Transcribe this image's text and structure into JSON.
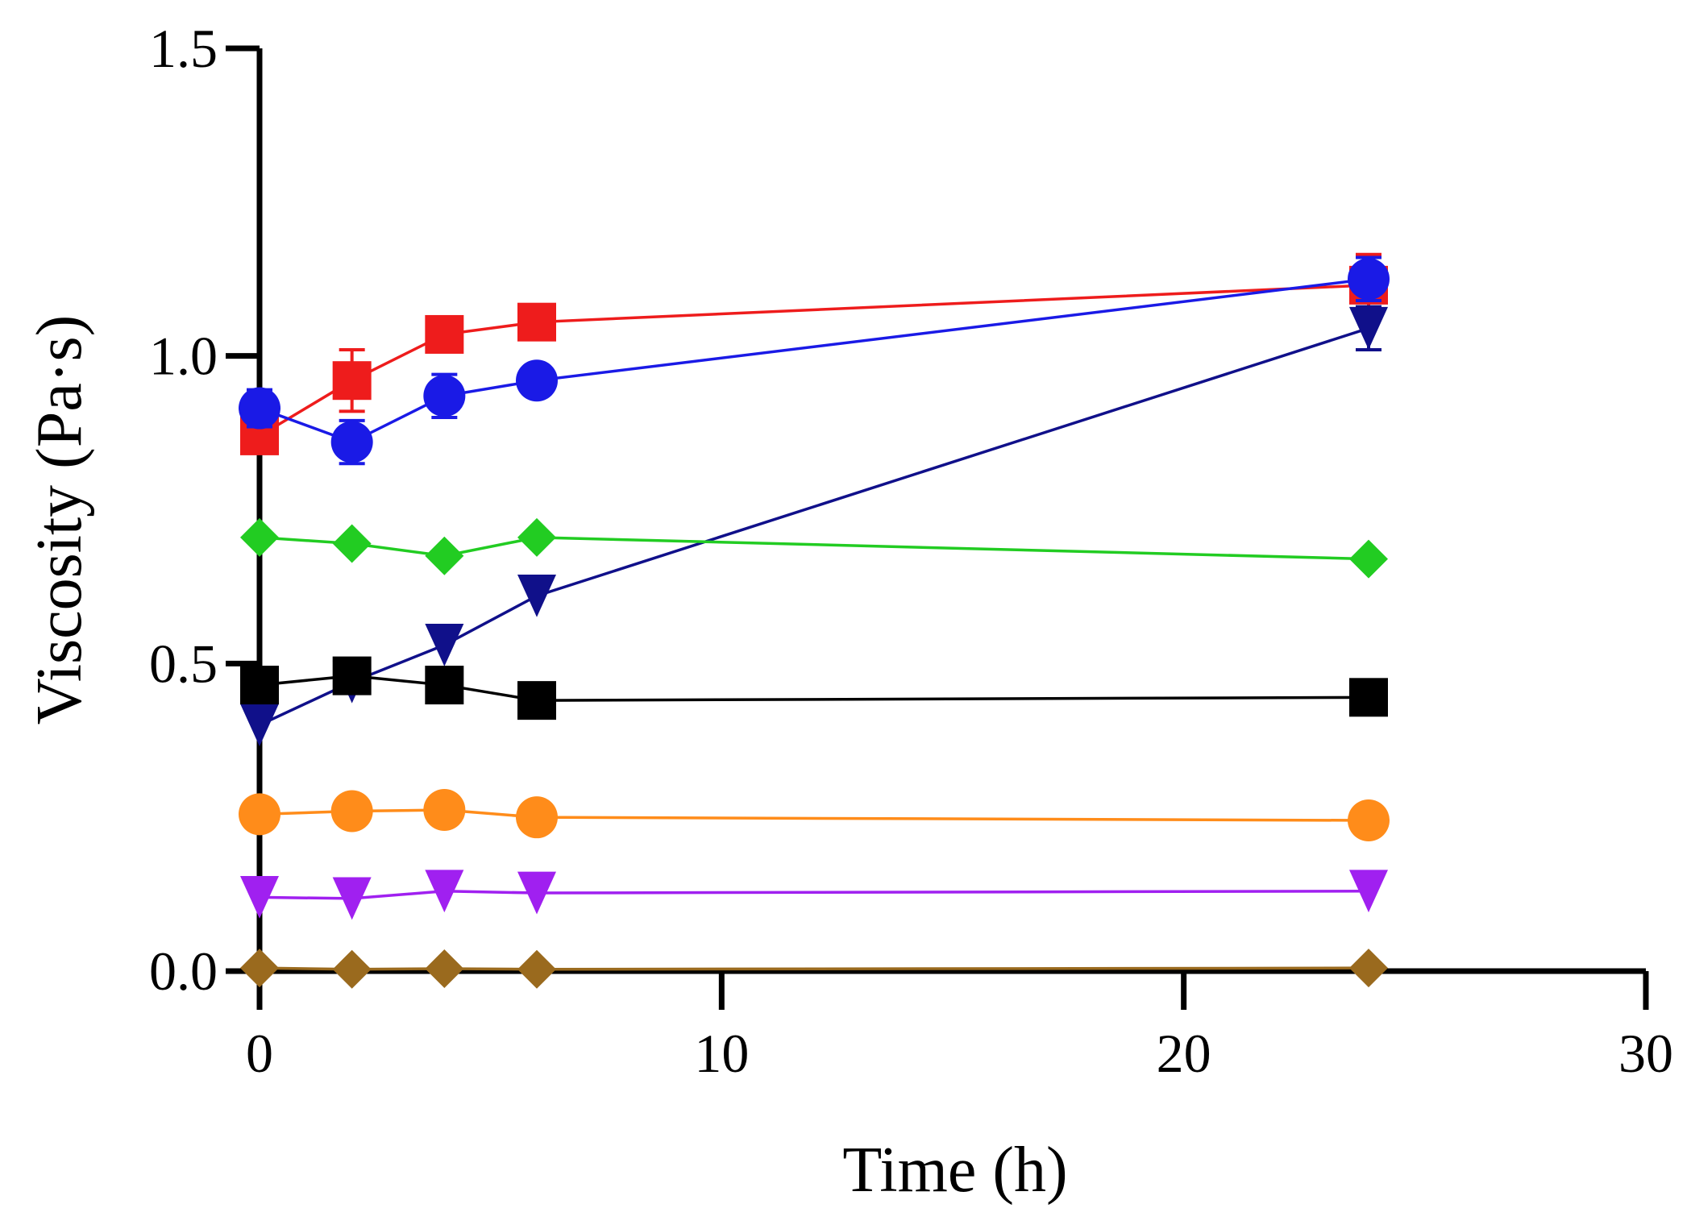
{
  "chart_data": {
    "type": "line",
    "title": "",
    "xlabel": "Time (h)",
    "ylabel": "Viscosity (Pa·s)",
    "xlim": [
      0,
      30
    ],
    "ylim": [
      0,
      1.5
    ],
    "x_ticks": [
      0,
      10,
      20,
      30
    ],
    "x_tick_labels": [
      "0",
      "10",
      "20",
      "30"
    ],
    "y_ticks": [
      0.0,
      0.5,
      1.0,
      1.5
    ],
    "y_tick_labels": [
      "0.0",
      "0.5",
      "1.0",
      "1.5"
    ],
    "grid": false,
    "legend": "none",
    "x": [
      0,
      2,
      4,
      6,
      24
    ],
    "series": [
      {
        "color": "#ee1c1c",
        "marker": "square",
        "values": [
          0.87,
          0.96,
          1.035,
          1.055,
          1.115
        ],
        "error": [
          0.0,
          0.05,
          0.0,
          0.0,
          0.05
        ]
      },
      {
        "color": "#1a1ae6",
        "marker": "circle",
        "values": [
          0.915,
          0.86,
          0.935,
          0.96,
          1.125
        ],
        "error": [
          0.03,
          0.035,
          0.035,
          0.0,
          0.035
        ]
      },
      {
        "color": "#10108a",
        "marker": "triangle-down",
        "values": [
          0.4,
          0.47,
          0.53,
          0.61,
          1.045
        ],
        "error": [
          0.0,
          0.0,
          0.0,
          0.0,
          0.035
        ]
      },
      {
        "color": "#22cc22",
        "marker": "diamond",
        "values": [
          0.705,
          0.695,
          0.675,
          0.705,
          0.67
        ],
        "error": [
          0,
          0,
          0,
          0,
          0
        ]
      },
      {
        "color": "#000000",
        "marker": "square",
        "values": [
          0.465,
          0.48,
          0.465,
          0.44,
          0.445
        ],
        "error": [
          0,
          0,
          0,
          0,
          0
        ]
      },
      {
        "color": "#ff8c1a",
        "marker": "circle",
        "values": [
          0.255,
          0.26,
          0.262,
          0.25,
          0.245
        ],
        "error": [
          0,
          0,
          0,
          0,
          0
        ]
      },
      {
        "color": "#a020f0",
        "marker": "triangle-down",
        "values": [
          0.12,
          0.118,
          0.13,
          0.127,
          0.13
        ],
        "error": [
          0,
          0,
          0,
          0,
          0
        ]
      },
      {
        "color": "#9a6a1e",
        "marker": "diamond",
        "values": [
          0.005,
          0.003,
          0.004,
          0.003,
          0.005
        ],
        "error": [
          0,
          0,
          0,
          0,
          0
        ]
      }
    ]
  }
}
